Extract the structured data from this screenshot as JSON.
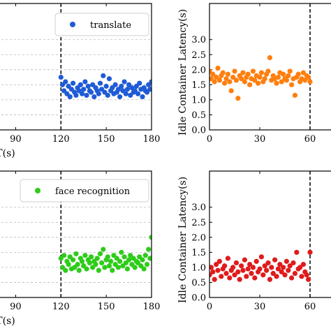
{
  "chart_data": [
    {
      "type": "scatter",
      "position_word": "top-left",
      "xlabel": "T(s)",
      "ylabel": "",
      "xlim": [
        75,
        180
      ],
      "ylim": [
        0,
        4.2
      ],
      "xticks": [
        90,
        120,
        150,
        180
      ],
      "vline": 120,
      "grid": "horizontal dashed",
      "legend_placement": "top-right",
      "series": [
        {
          "name": "translate",
          "color": "#1f5bd6",
          "x": [
            120,
            121,
            122,
            123,
            124,
            125,
            126,
            127,
            128,
            129,
            130,
            131,
            132,
            133,
            134,
            135,
            136,
            137,
            138,
            139,
            140,
            141,
            142,
            143,
            144,
            145,
            146,
            147,
            148,
            149,
            150,
            151,
            152,
            153,
            154,
            155,
            156,
            157,
            158,
            159,
            160,
            161,
            162,
            163,
            164,
            165,
            166,
            167,
            168,
            169,
            170,
            171,
            172,
            173,
            174,
            175,
            176,
            177,
            178,
            179,
            180
          ],
          "y": [
            1.75,
            1.5,
            1.3,
            1.6,
            1.2,
            1.45,
            1.1,
            1.35,
            1.55,
            1.25,
            1.15,
            1.4,
            1.3,
            1.5,
            1.2,
            1.35,
            1.6,
            1.15,
            1.45,
            1.3,
            1.25,
            1.5,
            1.1,
            1.4,
            1.3,
            1.2,
            1.55,
            1.35,
            1.8,
            1.25,
            1.45,
            1.15,
            1.7,
            1.3,
            1.4,
            1.2,
            1.5,
            1.25,
            1.35,
            1.1,
            1.45,
            1.3,
            1.6,
            1.2,
            1.35,
            1.5,
            1.15,
            1.4,
            1.25,
            1.3,
            1.45,
            1.2,
            1.55,
            1.35,
            1.1,
            1.4,
            1.3,
            1.25,
            1.5,
            1.35,
            1.6
          ]
        }
      ]
    },
    {
      "type": "scatter",
      "position_word": "top-right",
      "xlabel": "",
      "ylabel": "Idle Container Latency(s)",
      "xlim": [
        0,
        75
      ],
      "ylim": [
        0,
        4.2
      ],
      "xticks": [
        0,
        30,
        60
      ],
      "yticks": [
        "0.0",
        "0.5",
        "1.0",
        "1.5",
        "2.0",
        "2.5",
        "3.0"
      ],
      "vline": 60,
      "series": [
        {
          "name": "",
          "color": "#ff7f0e",
          "x": [
            0,
            1,
            2,
            3,
            4,
            5,
            6,
            7,
            8,
            9,
            10,
            11,
            12,
            13,
            14,
            15,
            16,
            17,
            18,
            19,
            20,
            21,
            22,
            23,
            24,
            25,
            26,
            27,
            28,
            29,
            30,
            31,
            32,
            33,
            34,
            35,
            36,
            37,
            38,
            39,
            40,
            41,
            42,
            43,
            44,
            45,
            46,
            47,
            48,
            49,
            50,
            51,
            52,
            53,
            54,
            55,
            56,
            57,
            58,
            59,
            60
          ],
          "y": [
            1.95,
            1.7,
            1.85,
            1.6,
            1.75,
            2.05,
            1.65,
            1.8,
            1.9,
            1.55,
            1.7,
            1.85,
            1.6,
            1.3,
            1.75,
            1.95,
            1.65,
            1.05,
            1.8,
            1.7,
            1.9,
            1.6,
            1.75,
            1.85,
            1.5,
            1.7,
            1.95,
            1.65,
            1.8,
            1.55,
            1.75,
            1.9,
            1.6,
            1.7,
            1.85,
            1.95,
            2.4,
            1.65,
            1.8,
            1.7,
            1.55,
            1.75,
            1.9,
            1.6,
            1.85,
            1.7,
            1.65,
            1.8,
            1.95,
            1.5,
            1.7,
            1.15,
            1.75,
            1.85,
            1.6,
            1.7,
            1.9,
            1.65,
            1.8,
            1.75,
            1.6
          ]
        }
      ]
    },
    {
      "type": "scatter",
      "position_word": "bottom-left",
      "xlabel": "T(s)",
      "ylabel": "",
      "xlim": [
        75,
        180
      ],
      "ylim": [
        0,
        4.2
      ],
      "xticks": [
        90,
        120,
        150,
        180
      ],
      "vline": 120,
      "grid": "horizontal dashed",
      "legend_placement": "top-right",
      "series": [
        {
          "name": "face recognition",
          "color": "#2ecc1a",
          "x": [
            120,
            121,
            122,
            123,
            124,
            125,
            126,
            127,
            128,
            129,
            130,
            131,
            132,
            133,
            134,
            135,
            136,
            137,
            138,
            139,
            140,
            141,
            142,
            143,
            144,
            145,
            146,
            147,
            148,
            149,
            150,
            151,
            152,
            153,
            154,
            155,
            156,
            157,
            158,
            159,
            160,
            161,
            162,
            163,
            164,
            165,
            166,
            167,
            168,
            169,
            170,
            171,
            172,
            173,
            174,
            175,
            176,
            177,
            178,
            179,
            180
          ],
          "y": [
            1.3,
            1.0,
            1.4,
            0.9,
            1.2,
            1.1,
            1.35,
            0.95,
            1.25,
            1.0,
            1.45,
            1.1,
            0.9,
            1.3,
            1.2,
            1.05,
            1.4,
            0.95,
            1.25,
            1.15,
            1.35,
            1.0,
            1.2,
            1.1,
            1.3,
            0.9,
            1.45,
            1.15,
            1.6,
            1.0,
            1.25,
            1.35,
            1.05,
            1.2,
            0.9,
            1.4,
            1.1,
            1.3,
            1.0,
            1.2,
            1.5,
            1.05,
            1.35,
            1.15,
            0.95,
            1.25,
            1.4,
            1.1,
            1.3,
            1.0,
            1.2,
            1.15,
            1.35,
            1.05,
            1.25,
            0.95,
            1.4,
            1.1,
            1.6,
            1.3,
            2.0
          ]
        }
      ]
    },
    {
      "type": "scatter",
      "position_word": "bottom-right",
      "xlabel": "",
      "ylabel": "Idle Container Latency(s)",
      "xlim": [
        0,
        75
      ],
      "ylim": [
        0,
        4.2
      ],
      "xticks": [
        0,
        30,
        60
      ],
      "yticks": [
        "0.0",
        "0.5",
        "1.0",
        "1.5",
        "2.0",
        "2.5",
        "3.0"
      ],
      "vline": 60,
      "series": [
        {
          "name": "",
          "color": "#e01b1b",
          "x": [
            0,
            1,
            2,
            3,
            4,
            5,
            6,
            7,
            8,
            9,
            10,
            11,
            12,
            13,
            14,
            15,
            16,
            17,
            18,
            19,
            20,
            21,
            22,
            23,
            24,
            25,
            26,
            27,
            28,
            29,
            30,
            31,
            32,
            33,
            34,
            35,
            36,
            37,
            38,
            39,
            40,
            41,
            42,
            43,
            44,
            45,
            46,
            47,
            48,
            49,
            50,
            51,
            52,
            53,
            54,
            55,
            56,
            57,
            58,
            59,
            60
          ],
          "y": [
            0.75,
            1.0,
            0.85,
            0.6,
            1.1,
            0.9,
            1.2,
            0.7,
            0.95,
            1.05,
            0.8,
            1.3,
            0.65,
            0.9,
            1.0,
            0.75,
            1.15,
            0.85,
            0.6,
            1.05,
            0.9,
            1.25,
            0.7,
            0.95,
            1.1,
            0.8,
            1.0,
            0.65,
            1.2,
            0.85,
            0.95,
            1.35,
            0.75,
            1.05,
            0.9,
            1.15,
            0.6,
            1.0,
            0.8,
            1.25,
            0.7,
            0.95,
            1.1,
            0.85,
            1.0,
            0.75,
            1.2,
            0.9,
            1.05,
            0.65,
            1.15,
            0.8,
            1.5,
            0.95,
            1.0,
            0.7,
            1.1,
            0.85,
            0.75,
            0.6,
            1.5
          ]
        }
      ]
    }
  ]
}
